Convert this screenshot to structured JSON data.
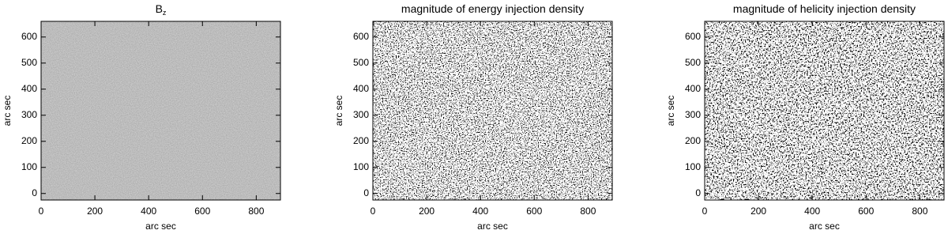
{
  "chart_data": [
    {
      "type": "image",
      "title": "B",
      "title_subscript": "z",
      "xlabel": "arc sec",
      "ylabel": "arc sec",
      "xlim": [
        0,
        890
      ],
      "ylim": [
        -25,
        660
      ],
      "xticks": [
        0,
        200,
        400,
        600,
        800
      ],
      "yticks": [
        0,
        100,
        200,
        300,
        400,
        500,
        600
      ]
    },
    {
      "type": "image",
      "title": "magnitude of energy injection density",
      "xlabel": "arc sec",
      "ylabel": "arc sec",
      "xlim": [
        0,
        890
      ],
      "ylim": [
        -25,
        660
      ],
      "xticks": [
        0,
        200,
        400,
        600,
        800
      ],
      "yticks": [
        0,
        100,
        200,
        300,
        400,
        500,
        600
      ]
    },
    {
      "type": "image",
      "title": "magnitude of helicity injection density",
      "xlabel": "arc sec",
      "ylabel": "arc sec",
      "xlim": [
        0,
        890
      ],
      "ylim": [
        -25,
        660
      ],
      "xticks": [
        0,
        200,
        400,
        600,
        800
      ],
      "yticks": [
        0,
        100,
        200,
        300,
        400,
        500,
        600
      ]
    }
  ]
}
